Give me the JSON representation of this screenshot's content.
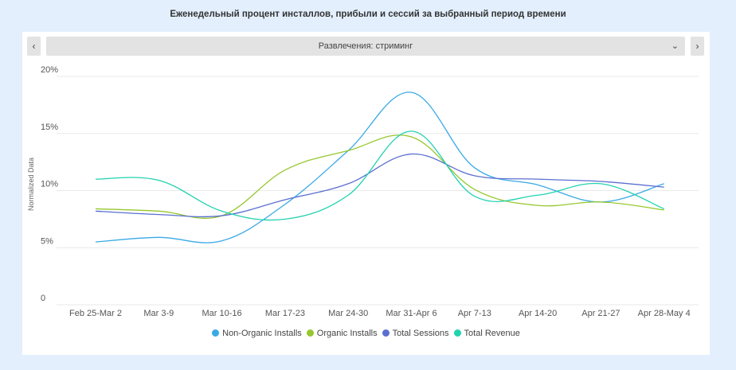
{
  "title": "Еженедельный процент инсталлов, прибыли и сессий за выбранный период времени",
  "nav": {
    "prev_icon": "‹",
    "next_icon": "›"
  },
  "selector": {
    "label": "Развлечения: стриминг",
    "chevron": "⌄"
  },
  "chart_data": {
    "type": "line",
    "title": "",
    "xlabel": "",
    "ylabel": "Normalized Data",
    "ylim": [
      0,
      20
    ],
    "yticks": [
      "0",
      "5%",
      "10%",
      "15%",
      "20%"
    ],
    "ytick_values": [
      0,
      5,
      10,
      15,
      20
    ],
    "grid": true,
    "legend_position": "bottom",
    "categories": [
      "Feb 25-Mar 2",
      "Mar 3-9",
      "Mar 10-16",
      "Mar 17-23",
      "Mar 24-30",
      "Mar 31-Apr 6",
      "Apr 7-13",
      "Apr 14-20",
      "Apr 21-27",
      "Apr 28-May 4"
    ],
    "series": [
      {
        "name": "Non-Organic Installs",
        "color": "#39a9e6",
        "values": [
          5.5,
          5.9,
          5.6,
          8.8,
          13.5,
          18.6,
          12.0,
          10.5,
          9.0,
          10.6
        ]
      },
      {
        "name": "Organic Installs",
        "color": "#96c72e",
        "values": [
          8.4,
          8.2,
          7.8,
          11.8,
          13.5,
          14.7,
          10.1,
          8.7,
          9.0,
          8.3
        ]
      },
      {
        "name": "Total Sessions",
        "color": "#5b6fd0",
        "values": [
          8.2,
          7.9,
          7.8,
          9.2,
          10.6,
          13.2,
          11.3,
          11.0,
          10.8,
          10.3
        ]
      },
      {
        "name": "Total Revenue",
        "color": "#22d2b0",
        "values": [
          11.0,
          10.9,
          8.2,
          7.5,
          9.6,
          15.2,
          9.5,
          9.6,
          10.6,
          8.4
        ]
      }
    ]
  }
}
